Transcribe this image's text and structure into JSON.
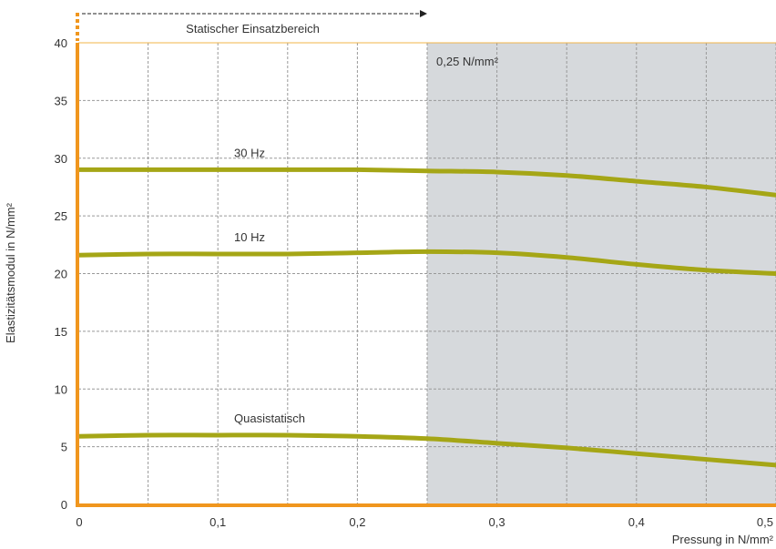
{
  "chart_data": {
    "type": "line",
    "xlabel": "Pressung in N/mm²",
    "ylabel": "Elastizitätsmodul in N/mm²",
    "xlim": [
      0,
      0.5
    ],
    "ylim": [
      0,
      40
    ],
    "x_ticks": [
      "0",
      "0,1",
      "0,2",
      "0,3",
      "0,4",
      "0,5"
    ],
    "y_ticks": [
      "0",
      "5",
      "10",
      "15",
      "20",
      "25",
      "30",
      "35",
      "40"
    ],
    "grid": true,
    "static_range_label": "Statischer Einsatzbereich",
    "shaded_region": {
      "from": 0.25,
      "to": 0.5,
      "label": "0,25 N/mm²"
    },
    "series": [
      {
        "name": "30 Hz",
        "x": [
          0,
          0.05,
          0.1,
          0.15,
          0.2,
          0.25,
          0.3,
          0.35,
          0.4,
          0.45,
          0.5
        ],
        "y": [
          29.0,
          29.0,
          29.0,
          29.0,
          29.0,
          28.9,
          28.8,
          28.5,
          28.0,
          27.5,
          26.8
        ]
      },
      {
        "name": "10 Hz",
        "x": [
          0,
          0.05,
          0.1,
          0.15,
          0.2,
          0.25,
          0.3,
          0.35,
          0.4,
          0.45,
          0.5
        ],
        "y": [
          21.6,
          21.7,
          21.7,
          21.7,
          21.8,
          21.9,
          21.8,
          21.4,
          20.8,
          20.3,
          20.0
        ]
      },
      {
        "name": "Quasistatisch",
        "x": [
          0,
          0.05,
          0.1,
          0.15,
          0.2,
          0.25,
          0.3,
          0.35,
          0.4,
          0.45,
          0.5
        ],
        "y": [
          5.9,
          6.0,
          6.0,
          6.0,
          5.9,
          5.7,
          5.3,
          4.9,
          4.4,
          3.9,
          3.4
        ]
      }
    ],
    "colors": {
      "curve": "#a5a616",
      "axis": "#f0961e",
      "shade": "#d6d9dc",
      "grid": "#999999",
      "separator": "#f0b44a"
    }
  }
}
